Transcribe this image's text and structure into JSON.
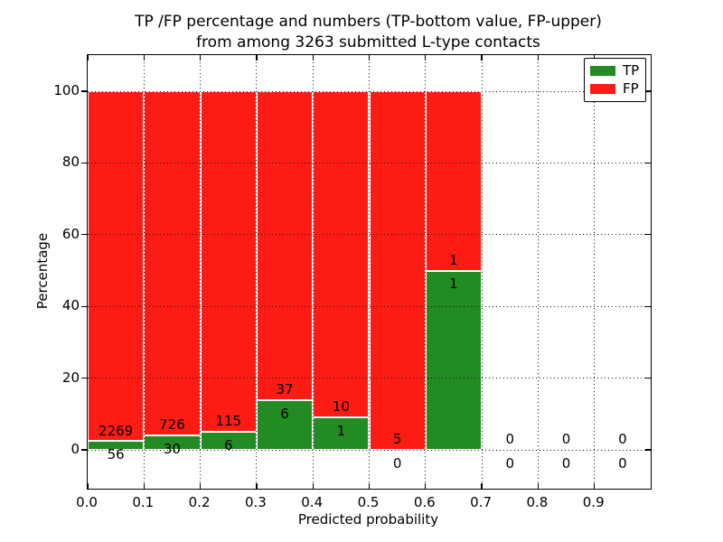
{
  "colors": {
    "tp": "#228b22",
    "fp": "#fc1c13",
    "text": "#000000",
    "grid": "#111111",
    "background": "#ffffff"
  },
  "chart_data": {
    "type": "bar",
    "stacked": true,
    "normalized_to_percent": true,
    "title_line1": "TP /FP percentage and numbers (TP-bottom value, FP-upper)",
    "title_line2": "from among 3263 submitted L-type contacts",
    "xlabel": "Predicted probability",
    "ylabel": "Percentage",
    "xlim": [
      0,
      1.0
    ],
    "ylim": [
      -11,
      110
    ],
    "bin_width": 0.1,
    "grid": "dotted",
    "legend_position": "upper right",
    "x_tick_labels": [
      "0.0",
      "0.1",
      "0.2",
      "0.3",
      "0.4",
      "0.5",
      "0.6",
      "0.7",
      "0.8",
      "0.9"
    ],
    "y_tick_values": [
      0,
      20,
      40,
      60,
      80,
      100
    ],
    "categories": [
      "0.0-0.1",
      "0.1-0.2",
      "0.2-0.3",
      "0.3-0.4",
      "0.4-0.5",
      "0.5-0.6",
      "0.6-0.7",
      "0.7-0.8",
      "0.8-0.9",
      "0.9-1.0"
    ],
    "series": [
      {
        "name": "TP",
        "color": "#228b22",
        "counts": [
          56,
          30,
          6,
          6,
          1,
          0,
          1,
          0,
          0,
          0
        ],
        "pct_heights": [
          2.41,
          3.97,
          4.96,
          13.95,
          9.09,
          0.0,
          50.0,
          null,
          null,
          null
        ]
      },
      {
        "name": "FP",
        "color": "#fc1c13",
        "counts": [
          2269,
          726,
          115,
          37,
          10,
          5,
          1,
          0,
          0,
          0
        ],
        "pct_heights": [
          97.59,
          96.03,
          95.04,
          86.05,
          90.91,
          100.0,
          50.0,
          null,
          null,
          null
        ]
      }
    ]
  }
}
